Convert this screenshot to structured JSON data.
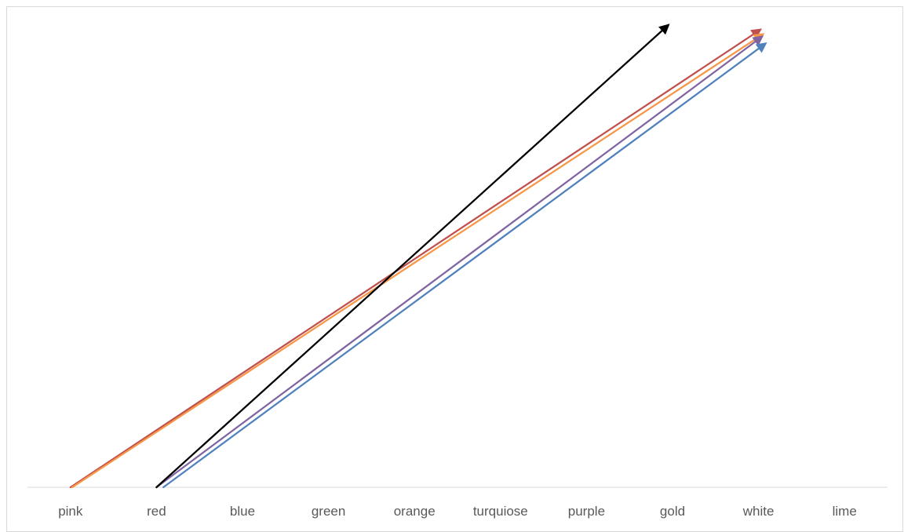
{
  "chart_data": {
    "type": "line",
    "categories": [
      "pink",
      "red",
      "blue",
      "green",
      "orange",
      "turquiose",
      "purple",
      "gold",
      "white",
      "lime"
    ],
    "title": "",
    "xlabel": "",
    "ylabel": "",
    "grid": false,
    "legend": "none",
    "series": [
      {
        "color": "#c0504d",
        "marker_end": "arrow",
        "points": [
          {
            "x": 0,
            "y": 0
          },
          {
            "x": 8.02,
            "y": 0.99
          }
        ]
      },
      {
        "color": "#f79646",
        "marker_end": "arrow",
        "points": [
          {
            "x": 0.02,
            "y": 0
          },
          {
            "x": 8.05,
            "y": 0.98
          }
        ]
      },
      {
        "color": "#8064a2",
        "marker_end": "arrow",
        "points": [
          {
            "x": 1.0,
            "y": 0
          },
          {
            "x": 8.04,
            "y": 0.975
          }
        ]
      },
      {
        "color": "#4f81bd",
        "marker_end": "arrow",
        "points": [
          {
            "x": 1.08,
            "y": 0
          },
          {
            "x": 8.08,
            "y": 0.96
          }
        ]
      },
      {
        "color": "#000000",
        "marker_end": "arrow",
        "points": [
          {
            "x": 1.0,
            "y": 0
          },
          {
            "x": 6.95,
            "y": 1.0
          }
        ]
      }
    ]
  }
}
